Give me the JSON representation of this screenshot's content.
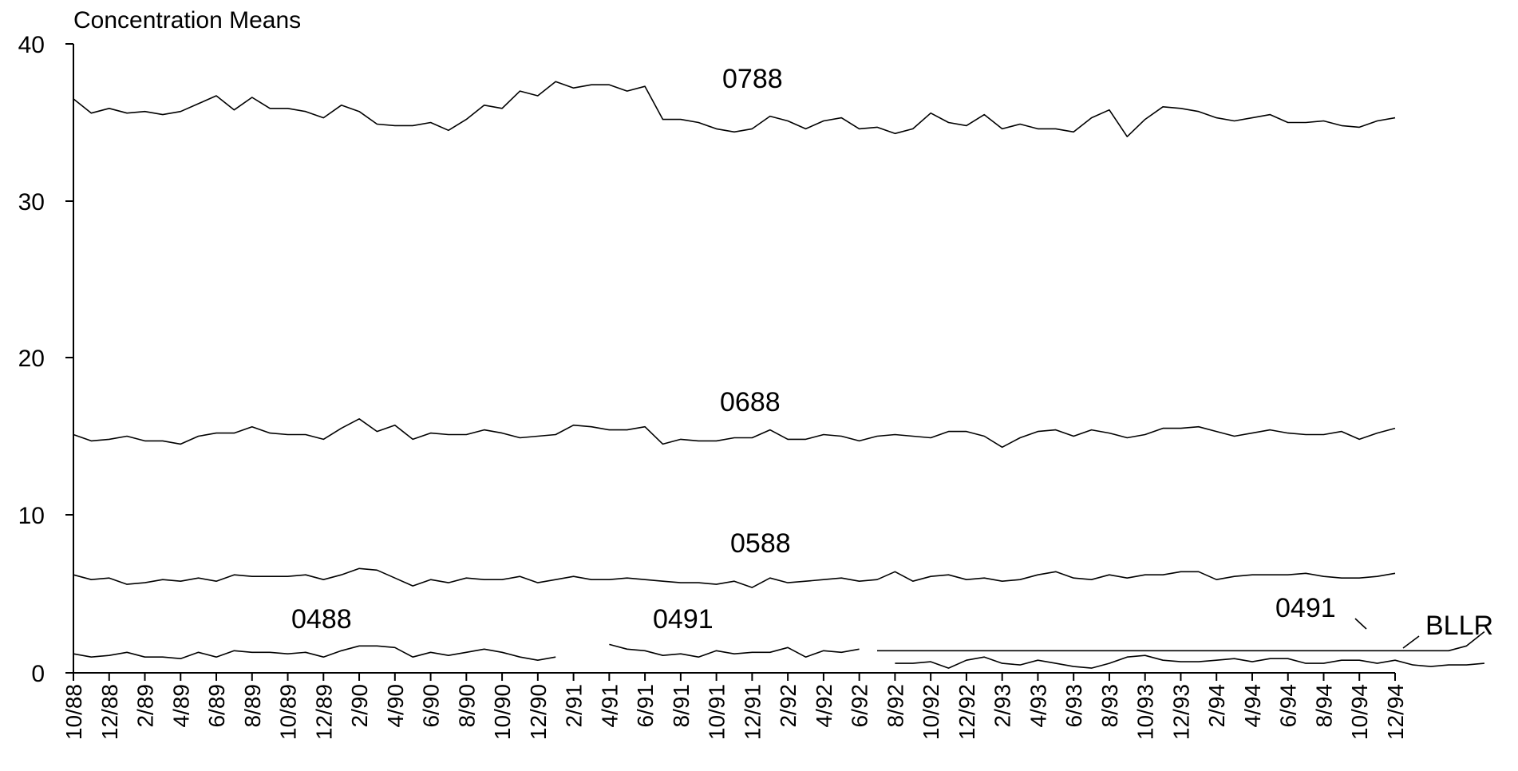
{
  "chart_data": {
    "type": "line",
    "title": "Concentration Means",
    "xlabel": "",
    "ylabel": "",
    "ylim": [
      0,
      40
    ],
    "y_scale": "piecewise: 0–20 compressed, 20–40 expanded",
    "yticks": [
      0,
      10,
      20,
      30,
      40
    ],
    "ytick_labels": [
      "0",
      "10",
      "20",
      "30",
      "40"
    ],
    "x_start": "10/88",
    "x_end": "12/94",
    "xtick_labels": [
      "10/88",
      "12/88",
      "2/89",
      "4/89",
      "6/89",
      "8/89",
      "10/89",
      "12/89",
      "2/90",
      "4/90",
      "6/90",
      "8/90",
      "10/90",
      "12/90",
      "2/91",
      "4/91",
      "6/91",
      "8/91",
      "10/91",
      "12/91",
      "2/92",
      "4/92",
      "6/92",
      "8/92",
      "10/92",
      "12/92",
      "2/93",
      "4/93",
      "6/93",
      "8/93",
      "10/93",
      "12/93",
      "2/94",
      "4/94",
      "6/94",
      "8/94",
      "10/94",
      "12/94"
    ],
    "grid": false,
    "legend": "none (inline labels)",
    "series": [
      {
        "name": "0788",
        "start": "10/88",
        "values": [
          36.5,
          35.6,
          35.9,
          35.6,
          35.7,
          35.5,
          35.7,
          36.2,
          36.7,
          35.8,
          36.6,
          35.9,
          35.9,
          35.7,
          35.3,
          36.1,
          35.7,
          34.9,
          34.8,
          34.8,
          35.0,
          34.5,
          35.2,
          36.1,
          35.9,
          37.0,
          36.7,
          37.6,
          37.2,
          37.4,
          37.4,
          37.0,
          37.3,
          35.2,
          35.2,
          35.0,
          34.6,
          34.4,
          34.6,
          35.4,
          35.1,
          34.6,
          35.1,
          35.3,
          34.6,
          34.7,
          34.3,
          34.6,
          35.6,
          35.0,
          34.8,
          35.5,
          34.6,
          34.9,
          34.6,
          34.6,
          34.4,
          35.3,
          35.8,
          34.1,
          35.2,
          36.0,
          35.9,
          35.7,
          35.3,
          35.1,
          35.3,
          35.5,
          35.0,
          35.0,
          35.1,
          34.8,
          34.7,
          35.1,
          35.3
        ]
      },
      {
        "name": "0688",
        "start": "10/88",
        "values": [
          15.1,
          14.7,
          14.8,
          15.0,
          14.7,
          14.7,
          14.5,
          15.0,
          15.2,
          15.2,
          15.6,
          15.2,
          15.1,
          15.1,
          14.8,
          15.5,
          16.1,
          15.3,
          15.7,
          14.8,
          15.2,
          15.1,
          15.1,
          15.4,
          15.2,
          14.9,
          15.0,
          15.1,
          15.7,
          15.6,
          15.4,
          15.4,
          15.6,
          14.5,
          14.8,
          14.7,
          14.7,
          14.9,
          14.9,
          15.4,
          14.8,
          14.8,
          15.1,
          15.0,
          14.7,
          15.0,
          15.1,
          15.0,
          14.9,
          15.3,
          15.3,
          15.0,
          14.3,
          14.9,
          15.3,
          15.4,
          15.0,
          15.4,
          15.2,
          14.9,
          15.1,
          15.5,
          15.5,
          15.6,
          15.3,
          15.0,
          15.2,
          15.4,
          15.2,
          15.1,
          15.1,
          15.3,
          14.8,
          15.2,
          15.5
        ]
      },
      {
        "name": "0588",
        "start": "10/88",
        "values": [
          6.2,
          5.9,
          6.0,
          5.6,
          5.7,
          5.9,
          5.8,
          6.0,
          5.8,
          6.2,
          6.1,
          6.1,
          6.1,
          6.2,
          5.9,
          6.2,
          6.6,
          6.5,
          6.0,
          5.5,
          5.9,
          5.7,
          6.0,
          5.9,
          5.9,
          6.1,
          5.7,
          5.9,
          6.1,
          5.9,
          5.9,
          6.0,
          5.9,
          5.8,
          5.7,
          5.7,
          5.6,
          5.8,
          5.4,
          6.0,
          5.7,
          5.8,
          5.9,
          6.0,
          5.8,
          5.9,
          6.4,
          5.8,
          6.1,
          6.2,
          5.9,
          6.0,
          5.8,
          5.9,
          6.2,
          6.4,
          6.0,
          5.9,
          6.2,
          6.0,
          6.2,
          6.2,
          6.4,
          6.4,
          5.9,
          6.1,
          6.2,
          6.2,
          6.2,
          6.3,
          6.1,
          6.0,
          6.0,
          6.1,
          6.3
        ]
      },
      {
        "name": "0488",
        "start": "10/88",
        "values": [
          1.2,
          1.0,
          1.1,
          1.3,
          1.0,
          1.0,
          0.9,
          1.3,
          1.0,
          1.4,
          1.3,
          1.3,
          1.2,
          1.3,
          1.0,
          1.4,
          1.7,
          1.7,
          1.6,
          1.0,
          1.3,
          1.1,
          1.3,
          1.5,
          1.3,
          1.0,
          0.8,
          1.0
        ]
      },
      {
        "name": "0491",
        "start": "4/91",
        "values": [
          1.8,
          1.5,
          1.4,
          1.1,
          1.2,
          1.0,
          1.4,
          1.2,
          1.3,
          1.3,
          1.6,
          1.0,
          1.4,
          1.3,
          1.5
        ]
      },
      {
        "name": "BLLR",
        "start": "7/92",
        "values": [
          1.4,
          1.4,
          1.4,
          1.4,
          1.4,
          1.4,
          1.4,
          1.4,
          1.4,
          1.4,
          1.4,
          1.4,
          1.4,
          1.4,
          1.4,
          1.4,
          1.4,
          1.4,
          1.4,
          1.4,
          1.4,
          1.4,
          1.4,
          1.4,
          1.4,
          1.4,
          1.4,
          1.4,
          1.4,
          1.4,
          1.4,
          1.4,
          1.4,
          1.7,
          2.6
        ]
      },
      {
        "name": "0491",
        "start": "8/92",
        "values": [
          0.6,
          0.6,
          0.7,
          0.3,
          0.8,
          1.0,
          0.6,
          0.5,
          0.8,
          0.6,
          0.4,
          0.3,
          0.6,
          1.0,
          1.1,
          0.8,
          0.7,
          0.7,
          0.8,
          0.9,
          0.7,
          0.9,
          0.9,
          0.6,
          0.6,
          0.8,
          0.8,
          0.6,
          0.8,
          0.5,
          0.4,
          0.5,
          0.5,
          0.6
        ]
      }
    ],
    "annotations": [
      {
        "text": "0788",
        "series": 0
      },
      {
        "text": "0688",
        "series": 1
      },
      {
        "text": "0588",
        "series": 2
      },
      {
        "text": "0488",
        "series": 3
      },
      {
        "text": "0491",
        "series": 4
      },
      {
        "text": "0491",
        "series": 6
      },
      {
        "text": "BLLR",
        "series": 5
      }
    ]
  }
}
